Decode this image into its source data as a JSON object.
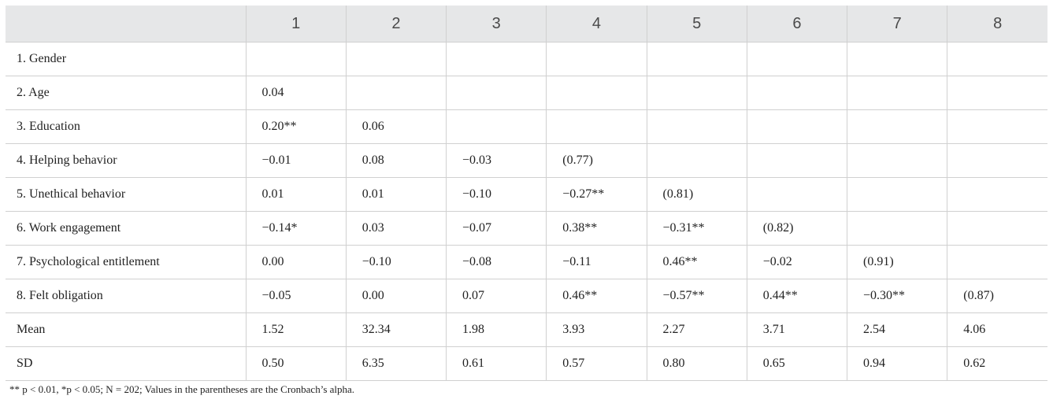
{
  "table": {
    "header": [
      "1",
      "2",
      "3",
      "4",
      "5",
      "6",
      "7",
      "8"
    ],
    "rows": [
      [
        "1. Gender"
      ],
      [
        "2. Age",
        "0.04"
      ],
      [
        "3. Education",
        "0.20**",
        "0.06"
      ],
      [
        "4. Helping behavior",
        "−0.01",
        "0.08",
        "−0.03",
        "(0.77)"
      ],
      [
        "5. Unethical behavior",
        "0.01",
        "0.01",
        "−0.10",
        "−0.27**",
        "(0.81)"
      ],
      [
        "6. Work engagement",
        "−0.14*",
        "0.03",
        "−0.07",
        "0.38**",
        "−0.31**",
        "(0.82)"
      ],
      [
        "7. Psychological entitlement",
        "0.00",
        "−0.10",
        "−0.08",
        "−0.11",
        "0.46**",
        "−0.02",
        "(0.91)"
      ],
      [
        "8. Felt obligation",
        "−0.05",
        "0.00",
        "0.07",
        "0.46**",
        "−0.57**",
        "0.44**",
        "−0.30**",
        "(0.87)"
      ],
      [
        "Mean",
        "1.52",
        "32.34",
        "1.98",
        "3.93",
        "2.27",
        "3.71",
        "2.54",
        "4.06"
      ],
      [
        "SD",
        "0.50",
        "6.35",
        "0.61",
        "0.57",
        "0.80",
        "0.65",
        "0.94",
        "0.62"
      ]
    ],
    "footnote": "** p < 0.01, *p < 0.05; N = 202; Values in the parentheses are the Cronbach’s alpha."
  }
}
